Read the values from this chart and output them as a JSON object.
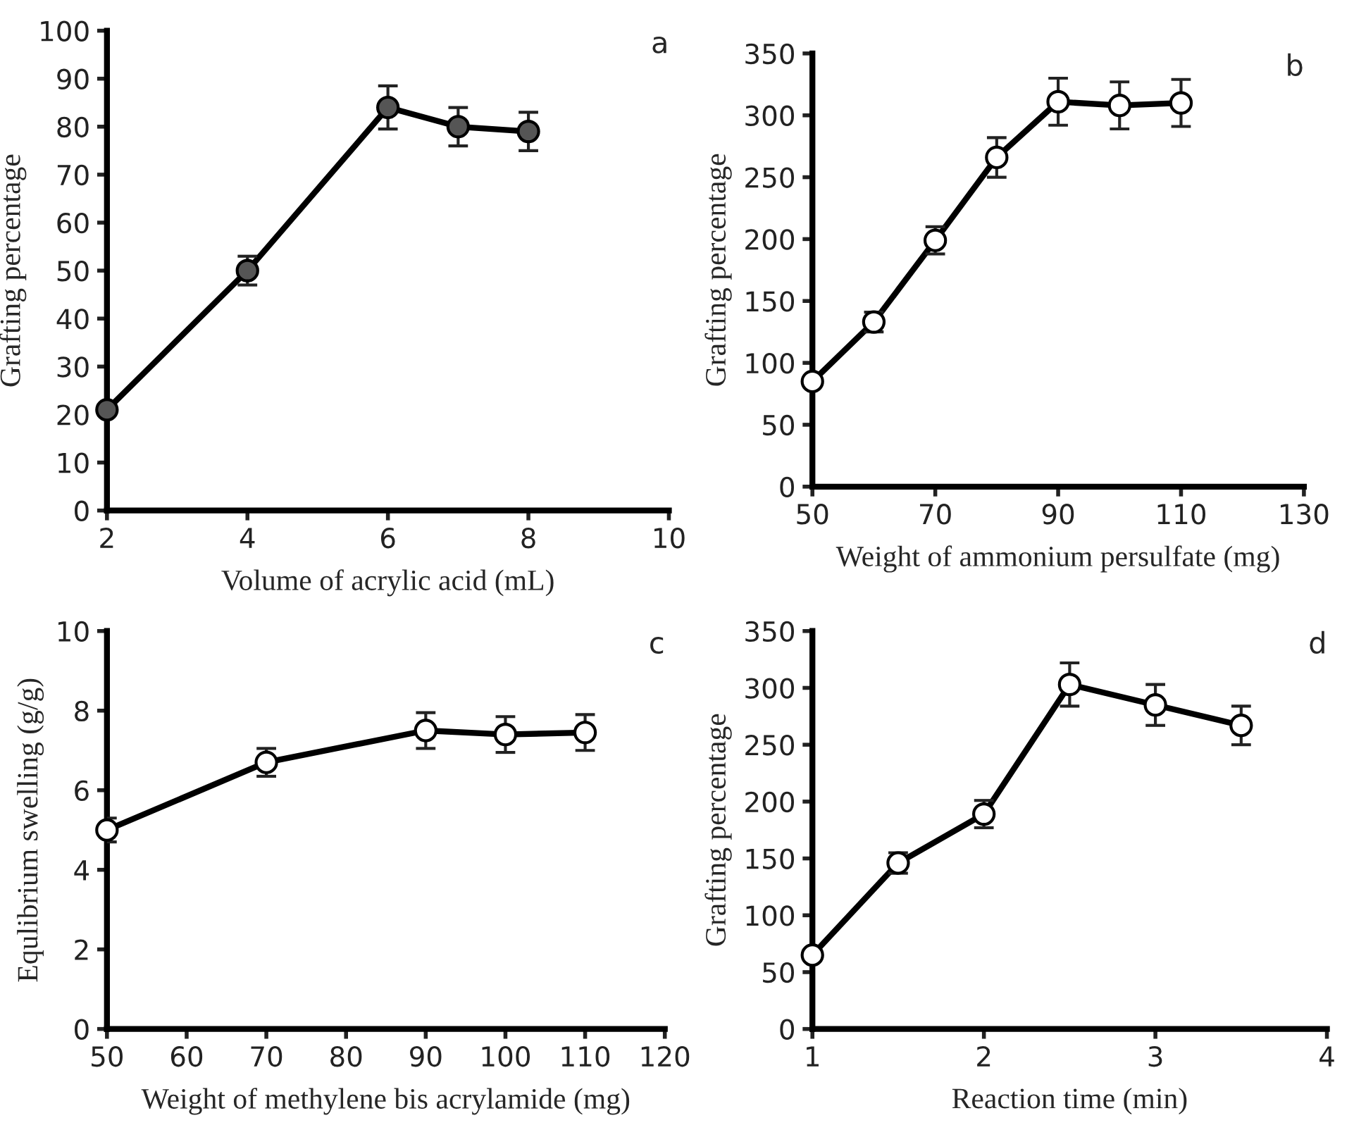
{
  "chart_data": [
    {
      "type": "line",
      "xlabel": "Volume of acrylic acid (mL)",
      "ylabel": "Grafting percentage",
      "annotations": [
        "a"
      ],
      "marker": "circle",
      "line_style": "solid",
      "grid": false,
      "legend": false,
      "xlim": [
        2,
        10
      ],
      "xticks": [
        2,
        4,
        6,
        8,
        10
      ],
      "ylim": [
        0,
        100
      ],
      "yticks": [
        0,
        10,
        20,
        30,
        40,
        50,
        60,
        70,
        80,
        90,
        100
      ],
      "series": [
        {
          "color": "#000000",
          "colors": [
            "#555555",
            "#555555",
            "#555555",
            "#555555",
            "#555555"
          ],
          "x": [
            2,
            4,
            6,
            7,
            8
          ],
          "values": [
            21,
            50,
            84,
            80,
            79
          ],
          "errors": [
            null,
            3,
            4.5,
            4,
            4
          ]
        }
      ]
    },
    {
      "type": "line",
      "xlabel": "Weight of ammonium persulfate (mg)",
      "ylabel": "Grafting percentage",
      "annotations": [
        "b"
      ],
      "marker": "circle",
      "line_style": "solid",
      "grid": false,
      "legend": false,
      "xlim": [
        50,
        130
      ],
      "xticks": [
        50,
        70,
        90,
        110,
        130
      ],
      "ylim": [
        0,
        350
      ],
      "yticks": [
        0,
        50,
        100,
        150,
        200,
        250,
        300,
        350
      ],
      "series": [
        {
          "color": "#000000",
          "colors": [
            "#ffffff",
            "#ffffff",
            "#ffffff",
            "#ffffff",
            "#ffffff",
            "#ffffff",
            "#ffffff"
          ],
          "x": [
            50,
            60,
            70,
            80,
            90,
            100,
            110
          ],
          "values": [
            85,
            133,
            199,
            266,
            311,
            308,
            310
          ],
          "errors": [
            null,
            8,
            11,
            16,
            19,
            19,
            19
          ]
        }
      ]
    },
    {
      "type": "line",
      "xlabel": "Weight of methylene bis acrylamide (mg)",
      "ylabel": "Equlibrium swelling (g/g)",
      "annotations": [
        "c"
      ],
      "marker": "circle",
      "line_style": "solid",
      "grid": false,
      "legend": false,
      "xlim": [
        50,
        120
      ],
      "xticks": [
        50,
        60,
        70,
        80,
        90,
        100,
        110,
        120
      ],
      "ylim": [
        0,
        10
      ],
      "yticks": [
        0,
        2,
        4,
        6,
        8,
        10
      ],
      "series": [
        {
          "color": "#000000",
          "colors": [
            "#ffffff",
            "#ffffff",
            "#ffffff",
            "#ffffff",
            "#ffffff"
          ],
          "x": [
            50,
            70,
            90,
            100,
            110
          ],
          "values": [
            5.0,
            6.7,
            7.5,
            7.4,
            7.45
          ],
          "errors": [
            0.3,
            0.35,
            0.45,
            0.45,
            0.45
          ]
        }
      ]
    },
    {
      "type": "line",
      "xlabel": "Reaction time (min)",
      "ylabel": "Grafting percentage",
      "annotations": [
        "d"
      ],
      "marker": "circle",
      "line_style": "solid",
      "grid": false,
      "legend": false,
      "xlim": [
        1,
        4
      ],
      "xticks": [
        1,
        2,
        3,
        4
      ],
      "ylim": [
        0,
        350
      ],
      "yticks": [
        0,
        50,
        100,
        150,
        200,
        250,
        300,
        350
      ],
      "series": [
        {
          "color": "#000000",
          "colors": [
            "#ffffff",
            "#ffffff",
            "#ffffff",
            "#ffffff",
            "#ffffff",
            "#ffffff"
          ],
          "x": [
            1,
            1.5,
            2,
            2.5,
            3,
            3.5
          ],
          "values": [
            65,
            146,
            189,
            303,
            285,
            267
          ],
          "errors": [
            null,
            9,
            12,
            19,
            18,
            17
          ]
        }
      ]
    }
  ]
}
